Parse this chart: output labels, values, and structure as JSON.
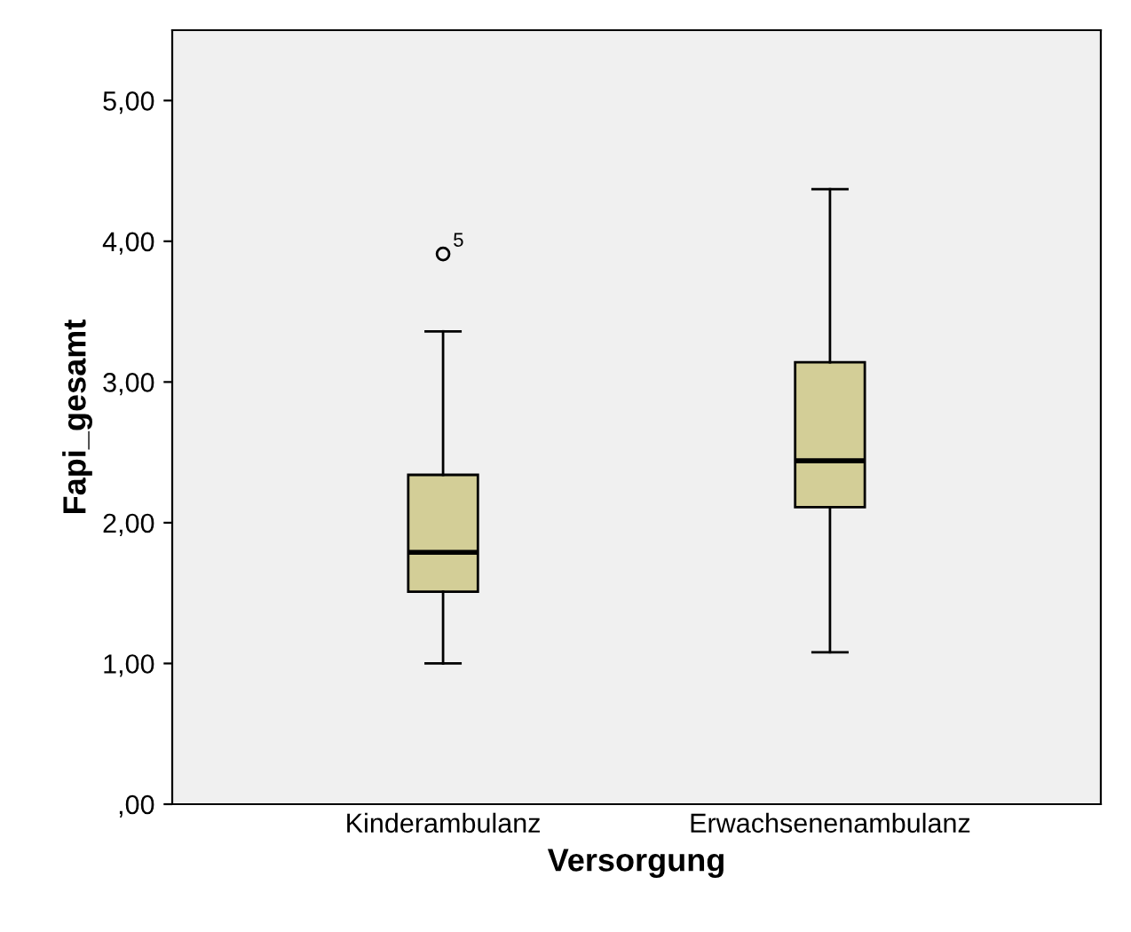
{
  "chart_data": {
    "type": "box",
    "xlabel": "Versorgung",
    "ylabel": "Fapi_gesamt",
    "categories": [
      "Kinderambulanz",
      "Erwachsenenambulanz"
    ],
    "color": "#d3ce97",
    "boxes": [
      {
        "low": 1.0,
        "q1": 1.51,
        "median": 1.79,
        "q3": 2.34,
        "high": 3.36,
        "outliers": [
          3.91
        ]
      },
      {
        "low": 1.08,
        "q1": 2.11,
        "median": 2.44,
        "q3": 3.14,
        "high": 4.37
      }
    ],
    "annotations": [
      "5"
    ],
    "ylim": [
      0,
      5.5
    ],
    "yticks": [
      {
        "value": 0,
        "label": ",00"
      },
      {
        "value": 1,
        "label": "1,00"
      },
      {
        "value": 2,
        "label": "2,00"
      },
      {
        "value": 3,
        "label": "3,00"
      },
      {
        "value": 4,
        "label": "4,00"
      },
      {
        "value": 5,
        "label": "5,00"
      }
    ],
    "grid": false,
    "legend": false
  }
}
